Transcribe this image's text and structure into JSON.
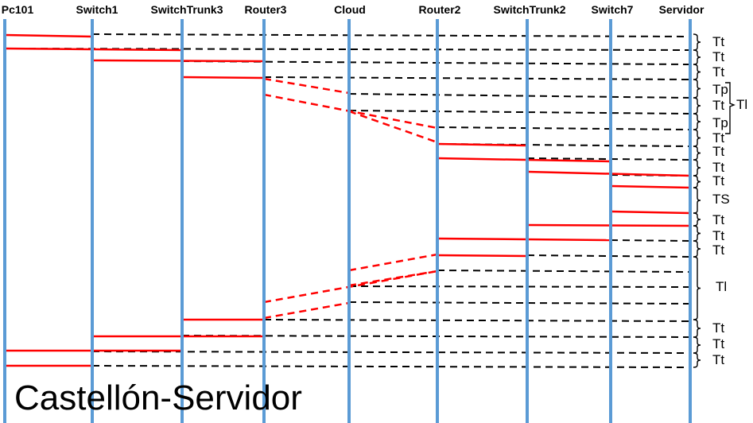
{
  "title": "Castellón-Servidor",
  "nodes": [
    "Pc101",
    "Switch1",
    "SwitchTrunk3",
    "Router3",
    "Cloud",
    "Router2",
    "SwitchTrunk2",
    "Switch7",
    "Servidor"
  ],
  "segment_labels": [
    "Tt",
    "Tt",
    "Tt",
    "Tp",
    "Tt",
    "Tp",
    "Tt",
    "Tt",
    "Tt",
    "Tt",
    "TS",
    "Tt",
    "Tt",
    "Tt",
    "Tl",
    "Tt",
    "Tt",
    "Tt"
  ],
  "group_label": "Tl",
  "colors": {
    "lifeline": "#5b9bd5",
    "message": "#ff0000",
    "return": "#000000"
  }
}
